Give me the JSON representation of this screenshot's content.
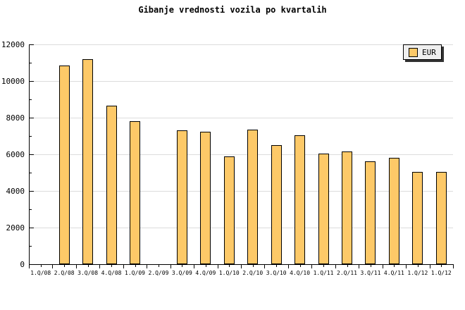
{
  "title": "Gibanje vrednosti vozila po kvartalih",
  "legend": {
    "label": "EUR",
    "position": "top-right"
  },
  "colors": {
    "background": "#FFFFFF",
    "bar_fill": "#FDC968",
    "bar_border": "#000000",
    "gridline": "#DCDCDC",
    "axis": "#000000",
    "text": "#000000",
    "legend_bg": "#EFEFEF",
    "legend_border": "#000000",
    "legend_shadow": "#333333"
  },
  "chart_data": {
    "type": "bar",
    "title": "Gibanje vrednosti vozila po kvartalih",
    "categories": [
      "1.Q/08",
      "2.Q/08",
      "3.Q/08",
      "4.Q/08",
      "1.Q/09",
      "2.Q/09",
      "3.Q/09",
      "4.Q/09",
      "1.Q/10",
      "2.Q/10",
      "3.Q/10",
      "4.Q/10",
      "1.Q/11",
      "2.Q/11",
      "3.Q/11",
      "4.Q/11",
      "1.Q/12",
      "1.Q/12"
    ],
    "series": [
      {
        "name": "EUR",
        "values": [
          null,
          10850,
          11200,
          8650,
          7800,
          null,
          7300,
          7250,
          5900,
          7350,
          6500,
          7050,
          6050,
          6150,
          5600,
          5800,
          5050,
          5050
        ]
      }
    ],
    "xlabel": "",
    "ylabel": "",
    "ylim": [
      0,
      12000
    ],
    "ytick_step": 2000,
    "ytick_minor_step": 1000,
    "yticks": [
      0,
      2000,
      4000,
      6000,
      8000,
      10000,
      12000
    ],
    "grid": "horizontal",
    "legend_position": "top-right",
    "missing_bars": [
      "1.Q/08",
      "2.Q/09"
    ]
  }
}
